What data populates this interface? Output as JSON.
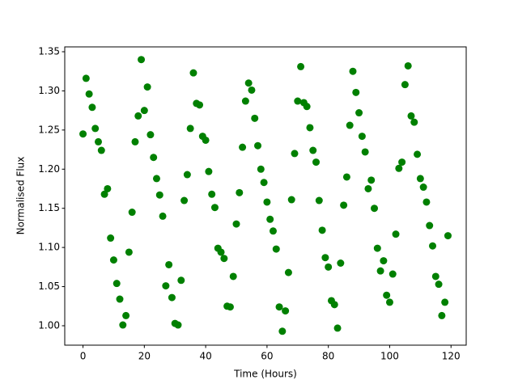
{
  "chart_data": {
    "type": "scatter",
    "xlabel": "Time (Hours)",
    "ylabel": "Normalised Flux",
    "color": "#008000",
    "x": [
      0,
      1,
      2,
      3,
      4,
      5,
      6,
      7,
      8,
      9,
      10,
      11,
      12,
      13,
      14,
      15,
      16,
      17,
      18,
      19,
      20,
      21,
      22,
      23,
      24,
      25,
      26,
      27,
      28,
      29,
      30,
      31,
      32,
      33,
      34,
      35,
      36,
      37,
      38,
      39,
      40,
      41,
      42,
      43,
      44,
      45,
      46,
      47,
      48,
      49,
      50,
      51,
      52,
      53,
      54,
      55,
      56,
      57,
      58,
      59,
      60,
      61,
      62,
      63,
      64,
      65,
      66,
      67,
      68,
      69,
      70,
      71,
      72,
      73,
      74,
      75,
      76,
      77,
      78,
      79,
      80,
      81,
      82,
      83,
      84,
      85,
      86,
      87,
      88,
      89,
      90,
      91,
      92,
      93,
      94,
      95,
      96,
      97,
      98,
      99,
      100,
      101,
      102,
      103,
      104,
      105,
      106,
      107,
      108,
      109,
      110,
      111,
      112,
      113,
      114,
      115,
      116,
      117,
      118,
      119
    ],
    "values": [
      1.245,
      1.316,
      1.296,
      1.279,
      1.252,
      1.235,
      1.224,
      1.168,
      1.175,
      1.112,
      1.084,
      1.054,
      1.034,
      1.001,
      1.013,
      1.094,
      1.145,
      1.235,
      1.268,
      1.34,
      1.275,
      1.305,
      1.244,
      1.215,
      1.188,
      1.167,
      1.14,
      1.051,
      1.078,
      1.036,
      1.003,
      1.001,
      1.058,
      1.16,
      1.193,
      1.252,
      1.323,
      1.284,
      1.282,
      1.242,
      1.237,
      1.197,
      1.168,
      1.151,
      1.099,
      1.094,
      1.086,
      1.025,
      1.024,
      1.063,
      1.13,
      1.17,
      1.228,
      1.287,
      1.31,
      1.301,
      1.265,
      1.23,
      1.2,
      1.183,
      1.158,
      1.136,
      1.121,
      1.098,
      1.024,
      0.993,
      1.019,
      1.068,
      1.161,
      1.22,
      1.287,
      1.331,
      1.285,
      1.28,
      1.253,
      1.224,
      1.209,
      1.16,
      1.122,
      1.087,
      1.075,
      1.032,
      1.027,
      0.997,
      1.08,
      1.154,
      1.19,
      1.256,
      1.325,
      1.298,
      1.272,
      1.242,
      1.222,
      1.175,
      1.186,
      1.15,
      1.099,
      1.07,
      1.083,
      1.039,
      1.03,
      1.066,
      1.117,
      1.201,
      1.209,
      1.308,
      1.332,
      1.268,
      1.26,
      1.219,
      1.188,
      1.177,
      1.158,
      1.128,
      1.102,
      1.063,
      1.053,
      1.013,
      1.03,
      1.115
    ],
    "xlim": [
      -5.95,
      124.95
    ],
    "xticks": [
      0,
      20,
      40,
      60,
      80,
      100,
      120
    ],
    "ylim": [
      0.9752,
      1.3562
    ],
    "yticks": [
      {
        "value": 1,
        "label": "1.00"
      },
      1.05,
      {
        "value": 1.1,
        "label": "1.10"
      },
      1.15,
      {
        "value": 1.2,
        "label": "1.20"
      },
      1.25,
      {
        "value": 1.3,
        "label": "1.30"
      },
      1.35
    ]
  }
}
